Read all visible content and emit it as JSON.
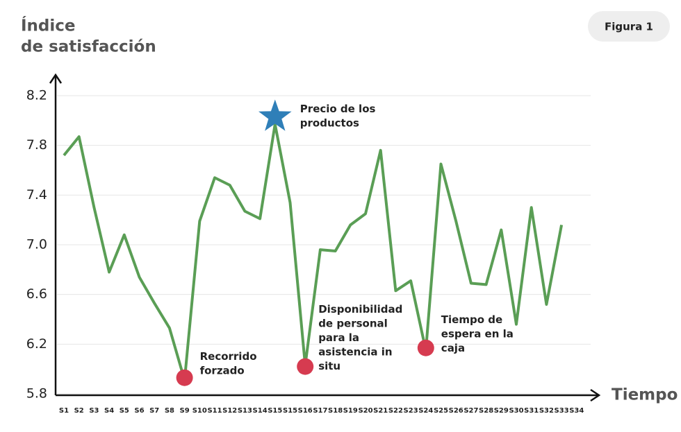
{
  "chart_data": {
    "type": "line",
    "badge": "Figura 1",
    "ylabel": [
      "Índice",
      "de satisfacción"
    ],
    "xlabel": "Tiempo",
    "categories": [
      "S1",
      "S2",
      "S3",
      "S4",
      "S5",
      "S6",
      "S7",
      "S8",
      "S9",
      "S10",
      "S11",
      "S12",
      "S13",
      "S14",
      "S15",
      "S15",
      "S16",
      "S17",
      "S18",
      "S19",
      "S20",
      "S21",
      "S22",
      "S23",
      "S24",
      "S25",
      "S26",
      "S27",
      "S28",
      "S29",
      "S30",
      "S31",
      "S32",
      "S33",
      "S34"
    ],
    "series": [
      {
        "color": "#5a9e55",
        "values": [
          7.72,
          7.87,
          7.3,
          6.78,
          7.08,
          6.74,
          6.53,
          6.33,
          5.91,
          7.19,
          7.54,
          7.48,
          7.27,
          7.21,
          7.97,
          7.34,
          6.03,
          6.96,
          6.95,
          7.16,
          7.25,
          7.76,
          6.63,
          6.71,
          6.15,
          7.65,
          7.19,
          6.69,
          6.68,
          7.12,
          6.36,
          7.3,
          6.52,
          7.16,
          null
        ]
      }
    ],
    "ylim": [
      5.8,
      8.2
    ],
    "yticks": [
      5.8,
      6.2,
      6.6,
      {
        "value": 7,
        "label": "7.0"
      },
      7.4,
      7.8,
      8.2
    ],
    "grid": true,
    "annotations": [
      {
        "category": "S15",
        "value": 8.03,
        "marker": "star",
        "color": "#2f7fb8",
        "text": [
          "Precio de los",
          "productos"
        ]
      },
      {
        "category": "S9",
        "value": 5.93,
        "marker": "circle",
        "color": "#d63b50",
        "text": [
          "Recorrido",
          "forzado"
        ]
      },
      {
        "category": "S16",
        "value": 6.02,
        "marker": "circle",
        "color": "#d63b50",
        "text": [
          "Disponibilidad",
          "de personal",
          "para la",
          "asistencia in",
          "situ"
        ]
      },
      {
        "category": "S24",
        "value": 6.17,
        "marker": "circle",
        "color": "#d63b50",
        "text": [
          "Tiempo de",
          "espera en la",
          "caja"
        ]
      }
    ]
  }
}
